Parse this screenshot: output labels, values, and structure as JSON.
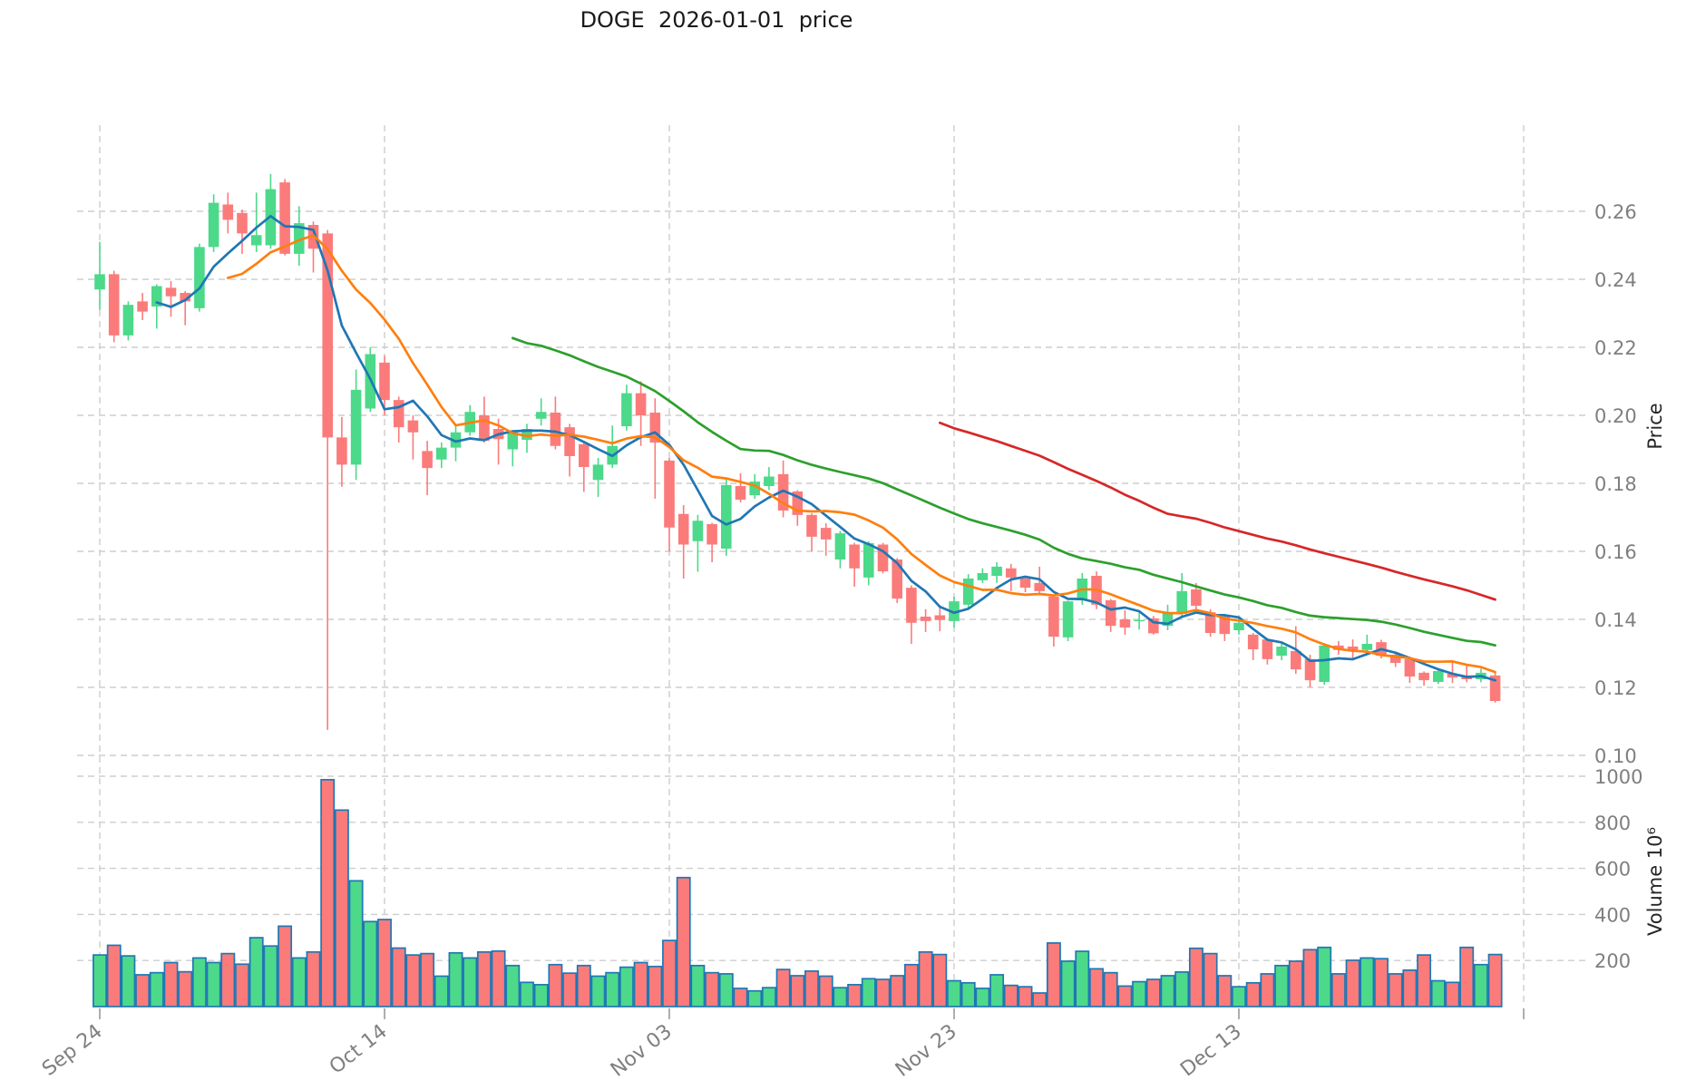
{
  "title": "DOGE  2026-01-01  price",
  "axes": {
    "price_axis": {
      "label": "Price",
      "ticks": [
        0.26,
        0.24,
        0.22,
        0.2,
        0.18,
        0.16,
        0.14,
        0.12,
        0.1
      ]
    },
    "volume_axis": {
      "label": "Volume  10⁶",
      "ticks": [
        1000,
        800,
        600,
        400,
        200
      ]
    },
    "x_axis": {
      "tick_labels": [
        "Sep 24",
        "Oct 14",
        "Nov 03",
        "Nov 23",
        "Dec 13",
        ""
      ],
      "tick_indices": [
        0,
        20,
        40,
        60,
        80,
        100
      ]
    }
  },
  "chart_data": {
    "type": "candlestick",
    "symbol": "DOGE",
    "title_date": "2026-01-01",
    "first_tick_label": "Sep 24",
    "columns": [
      "open",
      "high",
      "low",
      "close",
      "volume_M"
    ],
    "candles": [
      [
        0.237,
        0.251,
        0.231,
        0.2415,
        224
      ],
      [
        0.2415,
        0.2425,
        0.2215,
        0.2235,
        266
      ],
      [
        0.2235,
        0.2335,
        0.222,
        0.2325,
        220
      ],
      [
        0.2335,
        0.236,
        0.228,
        0.2305,
        138
      ],
      [
        0.232,
        0.2385,
        0.2255,
        0.238,
        147
      ],
      [
        0.2375,
        0.2395,
        0.229,
        0.235,
        191
      ],
      [
        0.236,
        0.2365,
        0.2265,
        0.2335,
        151
      ],
      [
        0.2315,
        0.2505,
        0.2305,
        0.2495,
        211
      ],
      [
        0.2495,
        0.265,
        0.248,
        0.2625,
        191
      ],
      [
        0.262,
        0.2655,
        0.2535,
        0.2575,
        230
      ],
      [
        0.2595,
        0.2605,
        0.2475,
        0.2535,
        184
      ],
      [
        0.25,
        0.2655,
        0.248,
        0.253,
        299
      ],
      [
        0.25,
        0.271,
        0.249,
        0.2665,
        263
      ],
      [
        0.2685,
        0.2695,
        0.247,
        0.2475,
        349
      ],
      [
        0.2475,
        0.2615,
        0.244,
        0.2565,
        211
      ],
      [
        0.256,
        0.257,
        0.242,
        0.249,
        237
      ],
      [
        0.2535,
        0.2545,
        0.1075,
        0.1935,
        985
      ],
      [
        0.1935,
        0.1995,
        0.179,
        0.1855,
        853
      ],
      [
        0.1855,
        0.2135,
        0.181,
        0.2075,
        546
      ],
      [
        0.202,
        0.22,
        0.201,
        0.218,
        369
      ],
      [
        0.2155,
        0.2175,
        0.2,
        0.2045,
        378
      ],
      [
        0.2045,
        0.2055,
        0.192,
        0.1965,
        254
      ],
      [
        0.1985,
        0.2,
        0.187,
        0.195,
        224
      ],
      [
        0.1895,
        0.1925,
        0.1765,
        0.1845,
        230
      ],
      [
        0.187,
        0.192,
        0.1845,
        0.1905,
        132
      ],
      [
        0.1905,
        0.197,
        0.1865,
        0.195,
        233
      ],
      [
        0.195,
        0.203,
        0.194,
        0.201,
        211
      ],
      [
        0.2,
        0.2055,
        0.192,
        0.1925,
        237
      ],
      [
        0.196,
        0.199,
        0.1855,
        0.193,
        241
      ],
      [
        0.19,
        0.1955,
        0.185,
        0.195,
        178
      ],
      [
        0.1928,
        0.1975,
        0.189,
        0.196,
        105
      ],
      [
        0.199,
        0.205,
        0.197,
        0.201,
        95
      ],
      [
        0.2008,
        0.2055,
        0.19,
        0.191,
        182
      ],
      [
        0.1965,
        0.1975,
        0.182,
        0.188,
        145
      ],
      [
        0.1915,
        0.1925,
        0.1775,
        0.1848,
        178
      ],
      [
        0.181,
        0.1875,
        0.176,
        0.1855,
        132
      ],
      [
        0.1855,
        0.197,
        0.1845,
        0.191,
        147
      ],
      [
        0.1968,
        0.209,
        0.1955,
        0.2065,
        171
      ],
      [
        0.2065,
        0.21,
        0.191,
        0.2,
        191
      ],
      [
        0.2008,
        0.205,
        0.1755,
        0.192,
        174
      ],
      [
        0.1867,
        0.1875,
        0.16,
        0.167,
        287
      ],
      [
        0.171,
        0.1736,
        0.152,
        0.162,
        560
      ],
      [
        0.163,
        0.1707,
        0.154,
        0.169,
        178
      ],
      [
        0.168,
        0.1684,
        0.1568,
        0.162,
        147
      ],
      [
        0.1608,
        0.1816,
        0.1587,
        0.1795,
        142
      ],
      [
        0.1792,
        0.183,
        0.1744,
        0.1752,
        79
      ],
      [
        0.1765,
        0.1827,
        0.1755,
        0.1805,
        68
      ],
      [
        0.1792,
        0.1848,
        0.178,
        0.182,
        82
      ],
      [
        0.1827,
        0.1867,
        0.17,
        0.172,
        161
      ],
      [
        0.1776,
        0.178,
        0.1675,
        0.1707,
        134
      ],
      [
        0.1707,
        0.1712,
        0.16,
        0.1643,
        154
      ],
      [
        0.1669,
        0.1683,
        0.1587,
        0.1635,
        132
      ],
      [
        0.1576,
        0.166,
        0.155,
        0.1653,
        82
      ],
      [
        0.162,
        0.1625,
        0.1496,
        0.155,
        95
      ],
      [
        0.1523,
        0.163,
        0.15,
        0.1624,
        121
      ],
      [
        0.162,
        0.1625,
        0.1535,
        0.1541,
        118
      ],
      [
        0.1576,
        0.158,
        0.1448,
        0.1461,
        134
      ],
      [
        0.1493,
        0.15,
        0.1328,
        0.139,
        182
      ],
      [
        0.1408,
        0.143,
        0.1363,
        0.1395,
        237
      ],
      [
        0.1412,
        0.1435,
        0.1365,
        0.1398,
        226
      ],
      [
        0.1395,
        0.1467,
        0.1376,
        0.1453,
        112
      ],
      [
        0.1443,
        0.1533,
        0.143,
        0.152,
        103
      ],
      [
        0.1515,
        0.155,
        0.1507,
        0.1536,
        79
      ],
      [
        0.1528,
        0.1568,
        0.1507,
        0.1555,
        138
      ],
      [
        0.155,
        0.1563,
        0.1483,
        0.1523,
        92
      ],
      [
        0.152,
        0.1525,
        0.148,
        0.1493,
        86
      ],
      [
        0.1507,
        0.1555,
        0.1475,
        0.1483,
        59
      ],
      [
        0.1467,
        0.147,
        0.132,
        0.1349,
        276
      ],
      [
        0.1347,
        0.1455,
        0.1336,
        0.1453,
        197
      ],
      [
        0.1456,
        0.1536,
        0.1443,
        0.152,
        240
      ],
      [
        0.1528,
        0.1541,
        0.143,
        0.1443,
        164
      ],
      [
        0.1456,
        0.146,
        0.1363,
        0.1381,
        147
      ],
      [
        0.14,
        0.1427,
        0.1355,
        0.1376,
        89
      ],
      [
        0.1395,
        0.142,
        0.137,
        0.1398,
        108
      ],
      [
        0.1403,
        0.141,
        0.1355,
        0.1359,
        118
      ],
      [
        0.1381,
        0.1443,
        0.1368,
        0.1421,
        134
      ],
      [
        0.1416,
        0.1536,
        0.1408,
        0.1483,
        150
      ],
      [
        0.1488,
        0.1507,
        0.1427,
        0.144,
        253
      ],
      [
        0.1421,
        0.143,
        0.1349,
        0.136,
        230
      ],
      [
        0.1408,
        0.141,
        0.1336,
        0.1357,
        134
      ],
      [
        0.1368,
        0.1408,
        0.1355,
        0.139,
        86
      ],
      [
        0.1355,
        0.136,
        0.128,
        0.1312,
        103
      ],
      [
        0.1341,
        0.1345,
        0.1267,
        0.1283,
        142
      ],
      [
        0.1293,
        0.1333,
        0.128,
        0.132,
        178
      ],
      [
        0.1307,
        0.138,
        0.124,
        0.1253,
        197
      ],
      [
        0.1283,
        0.1296,
        0.12,
        0.1221,
        247
      ],
      [
        0.1216,
        0.133,
        0.1208,
        0.1323,
        257
      ],
      [
        0.1323,
        0.1336,
        0.1296,
        0.131,
        142
      ],
      [
        0.132,
        0.1341,
        0.1283,
        0.1307,
        201
      ],
      [
        0.131,
        0.1355,
        0.1301,
        0.1328,
        211
      ],
      [
        0.1333,
        0.134,
        0.1285,
        0.1293,
        208
      ],
      [
        0.1296,
        0.13,
        0.126,
        0.1272,
        142
      ],
      [
        0.1283,
        0.129,
        0.1213,
        0.1232,
        158
      ],
      [
        0.1243,
        0.1247,
        0.1205,
        0.1221,
        224
      ],
      [
        0.1216,
        0.1255,
        0.121,
        0.1248,
        112
      ],
      [
        0.124,
        0.128,
        0.1213,
        0.1229,
        105
      ],
      [
        0.1235,
        0.1265,
        0.1215,
        0.1224,
        257
      ],
      [
        0.1224,
        0.1255,
        0.1215,
        0.1243,
        182
      ],
      [
        0.1235,
        0.1248,
        0.1155,
        0.116,
        226
      ]
    ],
    "moving_averages": [
      {
        "name": "ma-5",
        "window": 5,
        "color": "#1f77b4"
      },
      {
        "name": "ma-10",
        "window": 10,
        "color": "#ff7f0e"
      },
      {
        "name": "ma-30",
        "window": 30,
        "color": "#2ca02c"
      },
      {
        "name": "ma-60",
        "window": 60,
        "color": "#d62728"
      }
    ],
    "layout": {
      "up_color": "#4cd98a",
      "down_color": "#fb7b7b",
      "volume_edge_color": "#1f77b4",
      "grid_color": "#cdcdcd",
      "tick_text_color": "#7f7f7f",
      "axis_title_color": "#262626",
      "grid_on": true,
      "legend": "none",
      "price_axis_side": "right",
      "price_range_shown": [
        0.1,
        0.26
      ],
      "volume_range_shown": [
        0,
        1000
      ]
    }
  }
}
